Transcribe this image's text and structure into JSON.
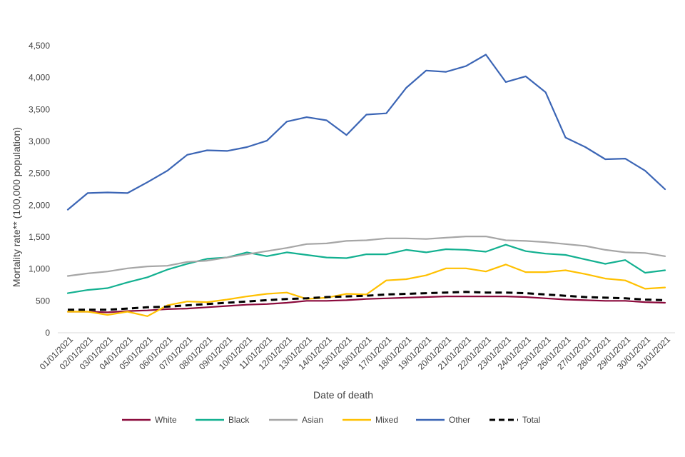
{
  "chart_data": {
    "type": "line",
    "title": "",
    "xlabel": "Date of death",
    "ylabel": "Mortality rate** (100,000 population)",
    "ylim": [
      0,
      4500
    ],
    "yticks": [
      0,
      500,
      1000,
      1500,
      2000,
      2500,
      3000,
      3500,
      4000,
      4500
    ],
    "ytick_labels": [
      "0",
      "500",
      "1,000",
      "1,500",
      "2,000",
      "2,500",
      "3,000",
      "3,500",
      "4,000",
      "4,500"
    ],
    "grid": false,
    "legend_position": "bottom",
    "categories": [
      "01/01/2021",
      "02/01/2021",
      "03/01/2021",
      "04/01/2021",
      "05/01/2021",
      "06/01/2021",
      "07/01/2021",
      "08/01/2021",
      "09/01/2021",
      "10/01/2021",
      "11/01/2021",
      "12/01/2021",
      "13/01/2021",
      "14/01/2021",
      "15/01/2021",
      "16/01/2021",
      "17/01/2021",
      "18/01/2021",
      "19/01/2021",
      "20/01/2021",
      "21/01/2021",
      "22/01/2021",
      "23/01/2021",
      "24/01/2021",
      "25/01/2021",
      "26/01/2021",
      "27/01/2021",
      "28/01/2021",
      "29/01/2021",
      "30/01/2021",
      "31/01/2021"
    ],
    "series": [
      {
        "name": "White",
        "color": "#8b0a3c",
        "dashed": false,
        "values": [
          330,
          330,
          320,
          340,
          350,
          370,
          380,
          400,
          420,
          440,
          450,
          470,
          500,
          500,
          510,
          530,
          540,
          550,
          560,
          570,
          570,
          570,
          570,
          560,
          540,
          520,
          510,
          500,
          500,
          480,
          470
        ]
      },
      {
        "name": "Black",
        "color": "#12b090",
        "dashed": false,
        "values": [
          620,
          670,
          700,
          790,
          870,
          990,
          1080,
          1160,
          1180,
          1260,
          1200,
          1260,
          1220,
          1180,
          1170,
          1230,
          1230,
          1300,
          1260,
          1310,
          1300,
          1270,
          1380,
          1280,
          1240,
          1220,
          1150,
          1080,
          1140,
          940,
          980
        ]
      },
      {
        "name": "Asian",
        "color": "#a6a6a6",
        "dashed": false,
        "values": [
          890,
          930,
          960,
          1010,
          1040,
          1050,
          1110,
          1130,
          1180,
          1230,
          1280,
          1330,
          1390,
          1400,
          1440,
          1450,
          1480,
          1480,
          1470,
          1490,
          1510,
          1510,
          1450,
          1440,
          1420,
          1390,
          1360,
          1300,
          1260,
          1250,
          1200
        ]
      },
      {
        "name": "Mixed",
        "color": "#ffc000",
        "dashed": false,
        "values": [
          330,
          330,
          280,
          330,
          260,
          430,
          490,
          480,
          520,
          570,
          610,
          630,
          530,
          550,
          610,
          600,
          820,
          840,
          900,
          1010,
          1010,
          960,
          1070,
          950,
          950,
          980,
          920,
          850,
          820,
          690,
          710
        ]
      },
      {
        "name": "Other",
        "color": "#3b65b5",
        "dashed": false,
        "values": [
          1930,
          2190,
          2200,
          2190,
          2360,
          2540,
          2790,
          2860,
          2850,
          2910,
          3010,
          3310,
          3380,
          3330,
          3100,
          3420,
          3440,
          3840,
          4110,
          4090,
          4180,
          4360,
          3930,
          4020,
          3770,
          3060,
          2910,
          2720,
          2730,
          2540,
          2250
        ]
      },
      {
        "name": "Total",
        "color": "#000000",
        "dashed": true,
        "values": [
          360,
          360,
          360,
          380,
          400,
          410,
          430,
          450,
          470,
          490,
          510,
          530,
          540,
          560,
          570,
          580,
          600,
          610,
          620,
          630,
          640,
          630,
          630,
          620,
          600,
          580,
          560,
          550,
          540,
          520,
          510
        ]
      }
    ]
  }
}
